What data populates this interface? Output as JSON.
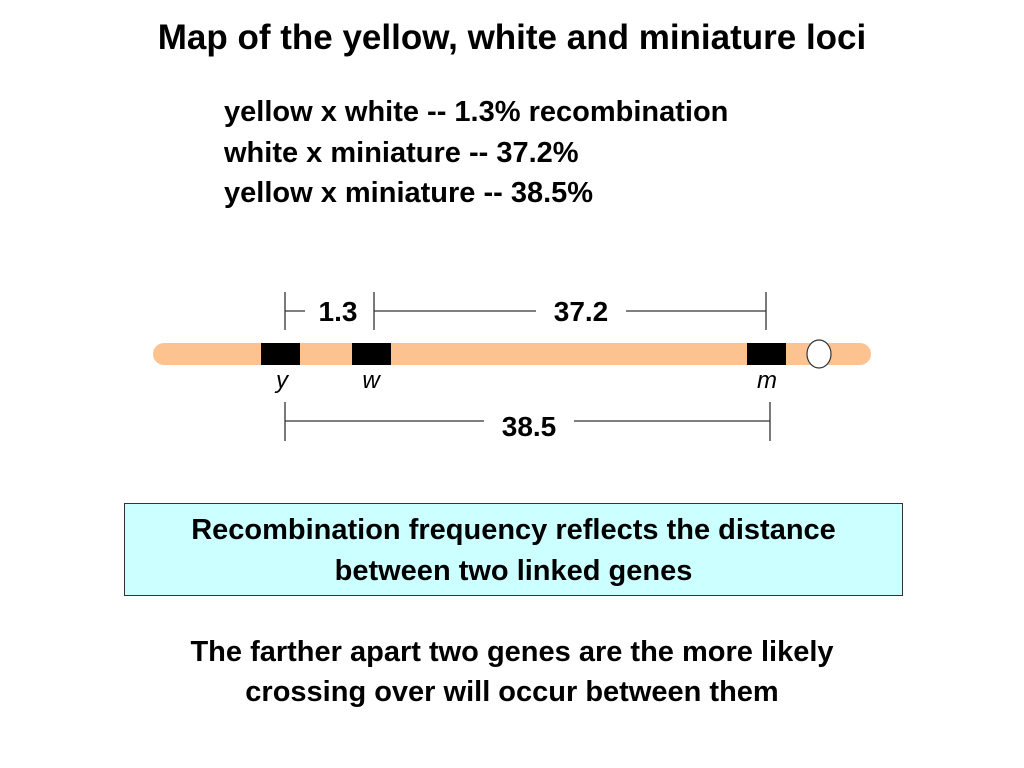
{
  "title": "Map of the yellow, white and miniature loci",
  "stats": [
    "yellow x white -- 1.3% recombination",
    "white x miniature -- 37.2%",
    "yellow x miniature -- 38.5%"
  ],
  "map": {
    "distances": {
      "y_w": "1.3",
      "w_m": "37.2",
      "y_m": "38.5"
    },
    "genes": [
      "y",
      "w",
      "m"
    ],
    "colors": {
      "chromosome": "#fcc28f",
      "gene": "#000000",
      "centromere": "#ffffff"
    }
  },
  "box": {
    "line1": "Recombination frequency reflects the distance",
    "line2": "between two linked genes"
  },
  "note": {
    "line1": "The farther apart two genes are the more likely",
    "line2": "crossing over will occur between them"
  }
}
